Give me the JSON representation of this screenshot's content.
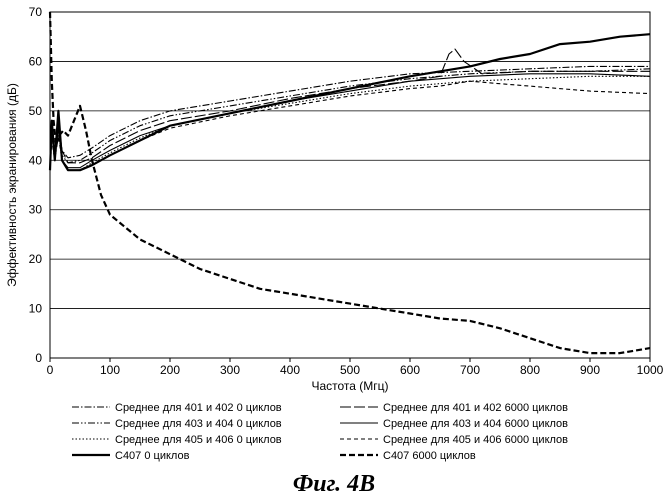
{
  "chart_data": {
    "type": "line",
    "xlabel": "Частота (Мгц)",
    "ylabel": "Эффективность экранирования (дБ)",
    "xlim": [
      0,
      1000
    ],
    "ylim": [
      0,
      70
    ],
    "xticks": [
      0,
      100,
      200,
      300,
      400,
      500,
      600,
      700,
      800,
      900,
      1000
    ],
    "yticks": [
      0,
      10,
      20,
      30,
      40,
      50,
      60,
      70
    ],
    "grid": "horizontal",
    "legend_position": "bottom",
    "caption": "Фиг. 4B",
    "series": [
      {
        "name": "Среднее для 401 и 402  0 циклов",
        "style": "dashdot",
        "x": [
          0,
          3,
          8,
          14,
          20,
          30,
          50,
          70,
          100,
          150,
          200,
          300,
          400,
          500,
          600,
          700,
          800,
          900,
          1000
        ],
        "y": [
          38,
          46,
          41,
          47,
          42,
          40.5,
          41,
          42.5,
          45,
          48,
          50,
          52,
          54,
          56,
          57.5,
          58,
          58.5,
          59,
          59
        ]
      },
      {
        "name": "Среднее для 401 и 402  6000 циклов",
        "style": "longdash",
        "x": [
          0,
          3,
          8,
          14,
          20,
          30,
          50,
          70,
          100,
          150,
          200,
          300,
          400,
          500,
          600,
          650,
          665,
          675,
          690,
          720,
          800,
          900,
          1000
        ],
        "y": [
          38,
          47,
          42,
          48,
          42,
          39.5,
          39.5,
          40.5,
          43,
          46,
          48,
          50,
          52.5,
          54.5,
          56,
          57,
          61.5,
          62.5,
          60,
          57.5,
          58,
          58,
          58
        ]
      },
      {
        "name": "Среднее для 403 и 404  0 циклов",
        "style": "dashdotdot",
        "x": [
          0,
          3,
          8,
          14,
          20,
          30,
          50,
          70,
          100,
          150,
          200,
          300,
          400,
          500,
          600,
          700,
          800,
          900,
          1000
        ],
        "y": [
          38,
          45,
          41,
          46,
          41,
          39.5,
          40,
          41.5,
          44,
          47,
          49,
          51,
          53,
          55,
          56.5,
          57.5,
          58,
          58,
          58.5
        ]
      },
      {
        "name": "Среднее для 403 и 404  6000 циклов",
        "style": "solid",
        "x": [
          0,
          3,
          8,
          14,
          20,
          30,
          50,
          70,
          100,
          150,
          200,
          300,
          400,
          500,
          600,
          700,
          800,
          900,
          1000
        ],
        "y": [
          38,
          46,
          40,
          47,
          40,
          38.5,
          38.5,
          40,
          42,
          45,
          47,
          49.5,
          52,
          54,
          56,
          57,
          57.5,
          57.5,
          57
        ]
      },
      {
        "name": "Среднее для 405 и 406  0 циклов",
        "style": "dotted",
        "x": [
          0,
          3,
          8,
          14,
          20,
          30,
          50,
          70,
          100,
          150,
          200,
          300,
          400,
          500,
          600,
          700,
          800,
          900,
          1000
        ],
        "y": [
          38,
          45,
          40,
          46,
          40,
          38,
          38,
          39.5,
          41.5,
          44.5,
          47,
          49.5,
          51.5,
          53.5,
          55,
          56,
          56.5,
          57,
          57
        ]
      },
      {
        "name": "Среднее для 405 и 406  6000 циклов",
        "style": "shortdash",
        "x": [
          0,
          3,
          8,
          14,
          20,
          30,
          50,
          70,
          100,
          150,
          200,
          300,
          400,
          500,
          600,
          650,
          700,
          750,
          800,
          900,
          1000
        ],
        "y": [
          38,
          44,
          40,
          45,
          40,
          38,
          38,
          39,
          41,
          44,
          46.5,
          49,
          51,
          53,
          54.5,
          55,
          56,
          55.5,
          55,
          54,
          53.5
        ]
      },
      {
        "name": "С407   0 циклов",
        "style": "thick-solid",
        "x": [
          0,
          3,
          8,
          14,
          20,
          30,
          50,
          70,
          100,
          150,
          200,
          300,
          400,
          500,
          600,
          700,
          750,
          800,
          850,
          900,
          950,
          1000
        ],
        "y": [
          38,
          48,
          40,
          50,
          40,
          38,
          38,
          39,
          41,
          44,
          47,
          49.5,
          52,
          54.5,
          57,
          59,
          60.5,
          61.5,
          63.5,
          64,
          65,
          65.5
        ]
      },
      {
        "name": "С407   6000 циклов",
        "style": "thick-dash",
        "x": [
          0,
          3,
          6,
          10,
          15,
          22,
          30,
          40,
          50,
          60,
          70,
          85,
          100,
          150,
          200,
          250,
          300,
          350,
          400,
          450,
          500,
          550,
          600,
          650,
          700,
          750,
          800,
          850,
          900,
          950,
          1000
        ],
        "y": [
          70,
          56,
          48,
          43,
          45,
          46,
          45,
          48,
          51,
          46,
          40,
          33,
          29,
          24,
          21,
          18,
          16,
          14,
          13,
          12,
          11,
          10,
          9,
          8,
          7.5,
          6,
          4,
          2,
          1,
          1,
          2
        ]
      }
    ]
  }
}
